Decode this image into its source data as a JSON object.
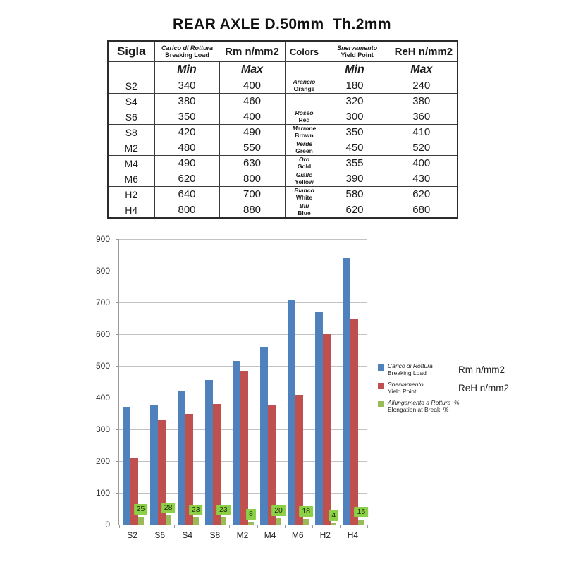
{
  "page": {
    "title": "REAR AXLE D.50mm  Th.2mm"
  },
  "table": {
    "header": {
      "sigla": "Sigla",
      "breaking_load_it": "Carico di Rottura",
      "breaking_load_en": "Breaking Load",
      "rm_label": "Rm n/mm2",
      "colors": "Colors",
      "yield_it": "Snervamento",
      "yield_en": "Yield Point",
      "reh_label": "ReH n/mm2",
      "min": "Min",
      "max": "Max"
    },
    "rows": [
      {
        "sigla": "S2",
        "rm_min": "340",
        "rm_max": "400",
        "color_it": "Arancio",
        "color_en": "Orange",
        "reh_min": "180",
        "reh_max": "240"
      },
      {
        "sigla": "S4",
        "rm_min": "380",
        "rm_max": "460",
        "color_it": "",
        "color_en": "",
        "reh_min": "320",
        "reh_max": "380"
      },
      {
        "sigla": "S6",
        "rm_min": "350",
        "rm_max": "400",
        "color_it": "Rosso",
        "color_en": "Red",
        "reh_min": "300",
        "reh_max": "360"
      },
      {
        "sigla": "S8",
        "rm_min": "420",
        "rm_max": "490",
        "color_it": "Marrone",
        "color_en": "Brown",
        "reh_min": "350",
        "reh_max": "410"
      },
      {
        "sigla": "M2",
        "rm_min": "480",
        "rm_max": "550",
        "color_it": "Verde",
        "color_en": "Green",
        "reh_min": "450",
        "reh_max": "520"
      },
      {
        "sigla": "M4",
        "rm_min": "490",
        "rm_max": "630",
        "color_it": "Oro",
        "color_en": "Gold",
        "reh_min": "355",
        "reh_max": "400"
      },
      {
        "sigla": "M6",
        "rm_min": "620",
        "rm_max": "800",
        "color_it": "Giallo",
        "color_en": "Yellow",
        "reh_min": "390",
        "reh_max": "430"
      },
      {
        "sigla": "H2",
        "rm_min": "640",
        "rm_max": "700",
        "color_it": "Bianco",
        "color_en": "White",
        "reh_min": "580",
        "reh_max": "620"
      },
      {
        "sigla": "H4",
        "rm_min": "800",
        "rm_max": "880",
        "color_it": "Blu",
        "color_en": "Blue",
        "reh_min": "620",
        "reh_max": "680"
      }
    ]
  },
  "chart_data": {
    "type": "bar",
    "title": "",
    "xlabel": "",
    "ylabel": "",
    "categories": [
      "S2",
      "S6",
      "S4",
      "S8",
      "M2",
      "M4",
      "M6",
      "H2",
      "H4"
    ],
    "series": [
      {
        "name": "Carico di Rottura / Breaking Load (Rm n/mm2)",
        "color": "#4f81bd",
        "values": [
          370,
          375,
          420,
          455,
          515,
          560,
          710,
          670,
          840
        ]
      },
      {
        "name": "Snervamento / Yield Point (ReH n/mm2)",
        "color": "#c0504d",
        "values": [
          210,
          330,
          350,
          380,
          485,
          377,
          410,
          600,
          650
        ]
      },
      {
        "name": "Allungamento a Rottura % / Elongation at Break %",
        "color": "#9bbb59",
        "values": [
          25,
          28,
          23,
          23,
          8,
          20,
          18,
          4,
          15
        ],
        "data_labels": true,
        "label_bg": "#8cd047",
        "label_text_color": "#1e2b00"
      }
    ],
    "ylim": [
      0,
      900
    ],
    "ytick_interval": 100,
    "yticks": [
      "0",
      "100",
      "200",
      "300",
      "400",
      "500",
      "600",
      "700",
      "800",
      "900"
    ],
    "grid": true,
    "legend_position": "right",
    "legend": [
      {
        "it": "Carico di Rottura",
        "en": "Breaking Load",
        "unit": "Rm n/mm2",
        "color": "#4f81bd"
      },
      {
        "it": "Snervamento",
        "en": "Yield Point",
        "unit": "ReH n/mm2",
        "color": "#c0504d"
      },
      {
        "it": "Allungamento a Rottura  %",
        "en": "Elongation at Break  %",
        "unit": "",
        "color": "#9bbb59"
      }
    ]
  },
  "colors": {
    "page_bg": "#ffffff",
    "bar_blue": "#4f81bd",
    "bar_red": "#c0504d",
    "bar_green": "#9bbb59",
    "label_green_bg": "#8cd047",
    "gridline": "#c3c3c3",
    "axis": "#9a9a9a",
    "table_border": "#3c3c3c"
  }
}
